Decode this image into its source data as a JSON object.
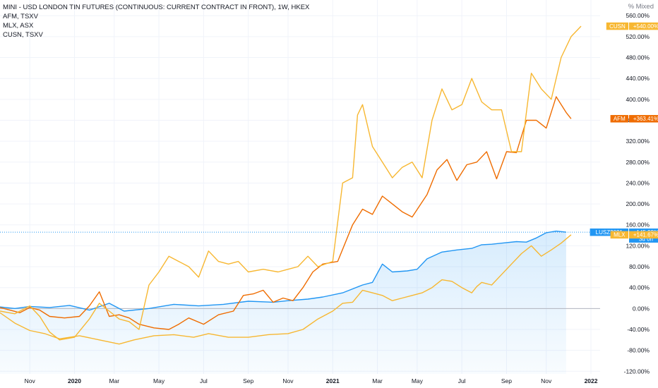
{
  "legend": {
    "main": "MINI - USD LONDON TIN FUTURES (CONTINUOUS: CURRENT CONTRACT IN FRONT), 1W, HKEX",
    "s1": "AFM, TSXV",
    "s2": "MLX, ASX",
    "s3": "CUSN, TSXV"
  },
  "scale_mode": "% Mixed",
  "colors": {
    "blue": "#2196f3",
    "orange": "#ef6c00",
    "gold": "#f7b731",
    "grid": "#f0f3fa",
    "axis_text": "#131722"
  },
  "chart_data": {
    "type": "line",
    "y_unit": "%",
    "ylim": [
      -125,
      590
    ],
    "y_ticks": [
      560,
      520,
      480,
      440,
      400,
      360,
      320,
      280,
      240,
      200,
      160,
      120,
      80,
      40,
      0,
      -40,
      -80,
      -120
    ],
    "y_tick_labels": [
      "560.00%",
      "520.00%",
      "480.00%",
      "440.00%",
      "400.00%",
      "360.00%",
      "320.00%",
      "280.00%",
      "240.00%",
      "200.00%",
      "160.00%",
      "120.00%",
      "80.00%",
      "40.00%",
      "0.00%",
      "-40.00%",
      "-80.00%",
      "-120.00%"
    ],
    "xlim": [
      0,
      118
    ],
    "x_ticks": [
      {
        "x": 6,
        "label": "Nov"
      },
      {
        "x": 15,
        "label": "2020"
      },
      {
        "x": 23,
        "label": "Mar"
      },
      {
        "x": 32,
        "label": "May"
      },
      {
        "x": 41,
        "label": "Jul"
      },
      {
        "x": 50,
        "label": "Sep"
      },
      {
        "x": 58,
        "label": "Nov"
      },
      {
        "x": 67,
        "label": "2021"
      },
      {
        "x": 76,
        "label": "Mar"
      },
      {
        "x": 84,
        "label": "May"
      },
      {
        "x": 93,
        "label": "Jul"
      },
      {
        "x": 102,
        "label": "Sep"
      },
      {
        "x": 110,
        "label": "Nov"
      },
      {
        "x": 119,
        "label": "2022"
      }
    ],
    "series": [
      {
        "name": "LUSZ2021",
        "color": "#2196f3",
        "area": true,
        "last_label": "+145.99%",
        "extra_label": "3d 0h",
        "points": [
          [
            0,
            3
          ],
          [
            3,
            0
          ],
          [
            6,
            4
          ],
          [
            10,
            2
          ],
          [
            14,
            6
          ],
          [
            18,
            -3
          ],
          [
            22,
            10
          ],
          [
            25,
            -5
          ],
          [
            30,
            0
          ],
          [
            35,
            8
          ],
          [
            40,
            5
          ],
          [
            45,
            8
          ],
          [
            50,
            14
          ],
          [
            55,
            12
          ],
          [
            58,
            15
          ],
          [
            62,
            18
          ],
          [
            65,
            22
          ],
          [
            69,
            30
          ],
          [
            73,
            45
          ],
          [
            75,
            50
          ],
          [
            77,
            85
          ],
          [
            79,
            70
          ],
          [
            82,
            72
          ],
          [
            84,
            75
          ],
          [
            86,
            95
          ],
          [
            89,
            108
          ],
          [
            92,
            112
          ],
          [
            95,
            115
          ],
          [
            97,
            122
          ],
          [
            99,
            123
          ],
          [
            101,
            125
          ],
          [
            104,
            128
          ],
          [
            106,
            127
          ],
          [
            108,
            135
          ],
          [
            110,
            145
          ],
          [
            112,
            148
          ],
          [
            114,
            146
          ]
        ]
      },
      {
        "name": "AFM",
        "color": "#ef6c00",
        "last_label": "+363.41%",
        "points": [
          [
            0,
            2
          ],
          [
            2,
            -3
          ],
          [
            4,
            -8
          ],
          [
            6,
            2
          ],
          [
            8,
            -3
          ],
          [
            10,
            -15
          ],
          [
            13,
            -18
          ],
          [
            16,
            -15
          ],
          [
            18,
            5
          ],
          [
            20,
            32
          ],
          [
            22,
            -15
          ],
          [
            24,
            -12
          ],
          [
            26,
            -18
          ],
          [
            28,
            -30
          ],
          [
            31,
            -37
          ],
          [
            34,
            -40
          ],
          [
            36,
            -30
          ],
          [
            38,
            -18
          ],
          [
            41,
            -30
          ],
          [
            44,
            -12
          ],
          [
            47,
            -5
          ],
          [
            49,
            25
          ],
          [
            51,
            28
          ],
          [
            53,
            35
          ],
          [
            55,
            12
          ],
          [
            57,
            20
          ],
          [
            59,
            15
          ],
          [
            61,
            40
          ],
          [
            63,
            70
          ],
          [
            65,
            85
          ],
          [
            68,
            90
          ],
          [
            71,
            160
          ],
          [
            73,
            190
          ],
          [
            75,
            180
          ],
          [
            77,
            215
          ],
          [
            79,
            200
          ],
          [
            81,
            185
          ],
          [
            83,
            175
          ],
          [
            86,
            218
          ],
          [
            88,
            265
          ],
          [
            90,
            285
          ],
          [
            92,
            245
          ],
          [
            94,
            275
          ],
          [
            96,
            280
          ],
          [
            98,
            300
          ],
          [
            100,
            248
          ],
          [
            102,
            300
          ],
          [
            104,
            298
          ],
          [
            106,
            360
          ],
          [
            108,
            360
          ],
          [
            110,
            345
          ],
          [
            112,
            405
          ],
          [
            114,
            375
          ],
          [
            115,
            363
          ]
        ]
      },
      {
        "name": "MLX",
        "color": "#f7b731",
        "last_label": "+141.67%",
        "points": [
          [
            0,
            -8
          ],
          [
            3,
            -28
          ],
          [
            6,
            -42
          ],
          [
            9,
            -48
          ],
          [
            12,
            -58
          ],
          [
            16,
            -52
          ],
          [
            20,
            -60
          ],
          [
            24,
            -68
          ],
          [
            27,
            -60
          ],
          [
            31,
            -52
          ],
          [
            35,
            -50
          ],
          [
            39,
            -55
          ],
          [
            42,
            -48
          ],
          [
            46,
            -55
          ],
          [
            50,
            -55
          ],
          [
            54,
            -50
          ],
          [
            58,
            -48
          ],
          [
            61,
            -40
          ],
          [
            64,
            -20
          ],
          [
            67,
            -5
          ],
          [
            69,
            10
          ],
          [
            71,
            12
          ],
          [
            73,
            35
          ],
          [
            75,
            30
          ],
          [
            77,
            25
          ],
          [
            79,
            15
          ],
          [
            81,
            20
          ],
          [
            83,
            25
          ],
          [
            85,
            30
          ],
          [
            87,
            40
          ],
          [
            89,
            55
          ],
          [
            91,
            52
          ],
          [
            93,
            40
          ],
          [
            95,
            30
          ],
          [
            96,
            42
          ],
          [
            97,
            50
          ],
          [
            99,
            45
          ],
          [
            101,
            65
          ],
          [
            103,
            85
          ],
          [
            105,
            105
          ],
          [
            107,
            120
          ],
          [
            109,
            100
          ],
          [
            111,
            112
          ],
          [
            113,
            125
          ],
          [
            115,
            141
          ]
        ]
      },
      {
        "name": "CUSN",
        "color": "#f7b731",
        "last_label": "+540.00%",
        "points": [
          [
            0,
            -5
          ],
          [
            3,
            -10
          ],
          [
            6,
            5
          ],
          [
            8,
            -15
          ],
          [
            10,
            -45
          ],
          [
            12,
            -60
          ],
          [
            15,
            -55
          ],
          [
            18,
            -20
          ],
          [
            20,
            10
          ],
          [
            22,
            -5
          ],
          [
            24,
            -20
          ],
          [
            26,
            -25
          ],
          [
            28,
            -40
          ],
          [
            30,
            45
          ],
          [
            32,
            70
          ],
          [
            34,
            100
          ],
          [
            36,
            90
          ],
          [
            38,
            80
          ],
          [
            40,
            60
          ],
          [
            42,
            110
          ],
          [
            44,
            90
          ],
          [
            46,
            85
          ],
          [
            48,
            90
          ],
          [
            50,
            70
          ],
          [
            53,
            75
          ],
          [
            56,
            70
          ],
          [
            58,
            75
          ],
          [
            60,
            80
          ],
          [
            62,
            100
          ],
          [
            64,
            80
          ],
          [
            67,
            90
          ],
          [
            69,
            240
          ],
          [
            71,
            250
          ],
          [
            72,
            370
          ],
          [
            73,
            390
          ],
          [
            75,
            310
          ],
          [
            77,
            280
          ],
          [
            79,
            250
          ],
          [
            81,
            270
          ],
          [
            83,
            280
          ],
          [
            85,
            250
          ],
          [
            87,
            360
          ],
          [
            89,
            420
          ],
          [
            91,
            380
          ],
          [
            93,
            390
          ],
          [
            95,
            440
          ],
          [
            97,
            395
          ],
          [
            99,
            380
          ],
          [
            101,
            380
          ],
          [
            103,
            300
          ],
          [
            105,
            300
          ],
          [
            107,
            450
          ],
          [
            109,
            420
          ],
          [
            111,
            400
          ],
          [
            113,
            480
          ],
          [
            115,
            520
          ],
          [
            117,
            540
          ]
        ]
      }
    ]
  }
}
